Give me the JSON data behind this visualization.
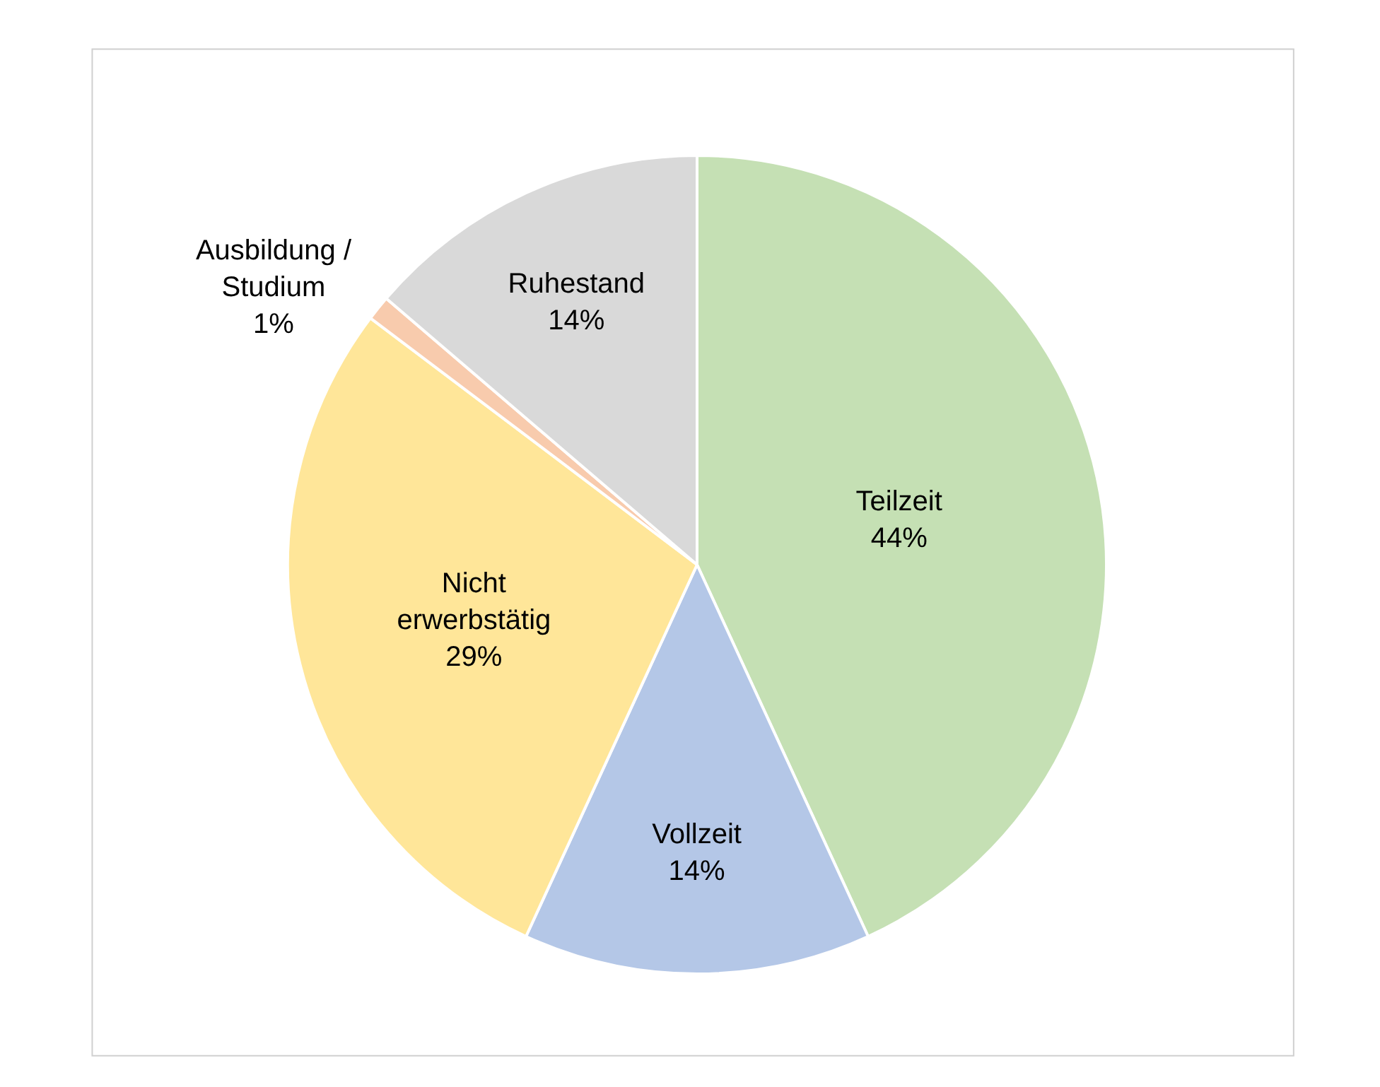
{
  "chart_data": {
    "type": "pie",
    "categories": [
      "Teilzeit",
      "Vollzeit",
      "Nicht erwerbstätig",
      "Ausbildung / Studium",
      "Ruhestand"
    ],
    "values": [
      44,
      14,
      29,
      1,
      14
    ],
    "value_labels": [
      "44%",
      "14%",
      "29%",
      "1%",
      "14%"
    ],
    "colors": [
      "#c5e0b4",
      "#b4c7e7",
      "#ffe699",
      "#f8cbad",
      "#d9d9d9"
    ],
    "legend": false
  }
}
